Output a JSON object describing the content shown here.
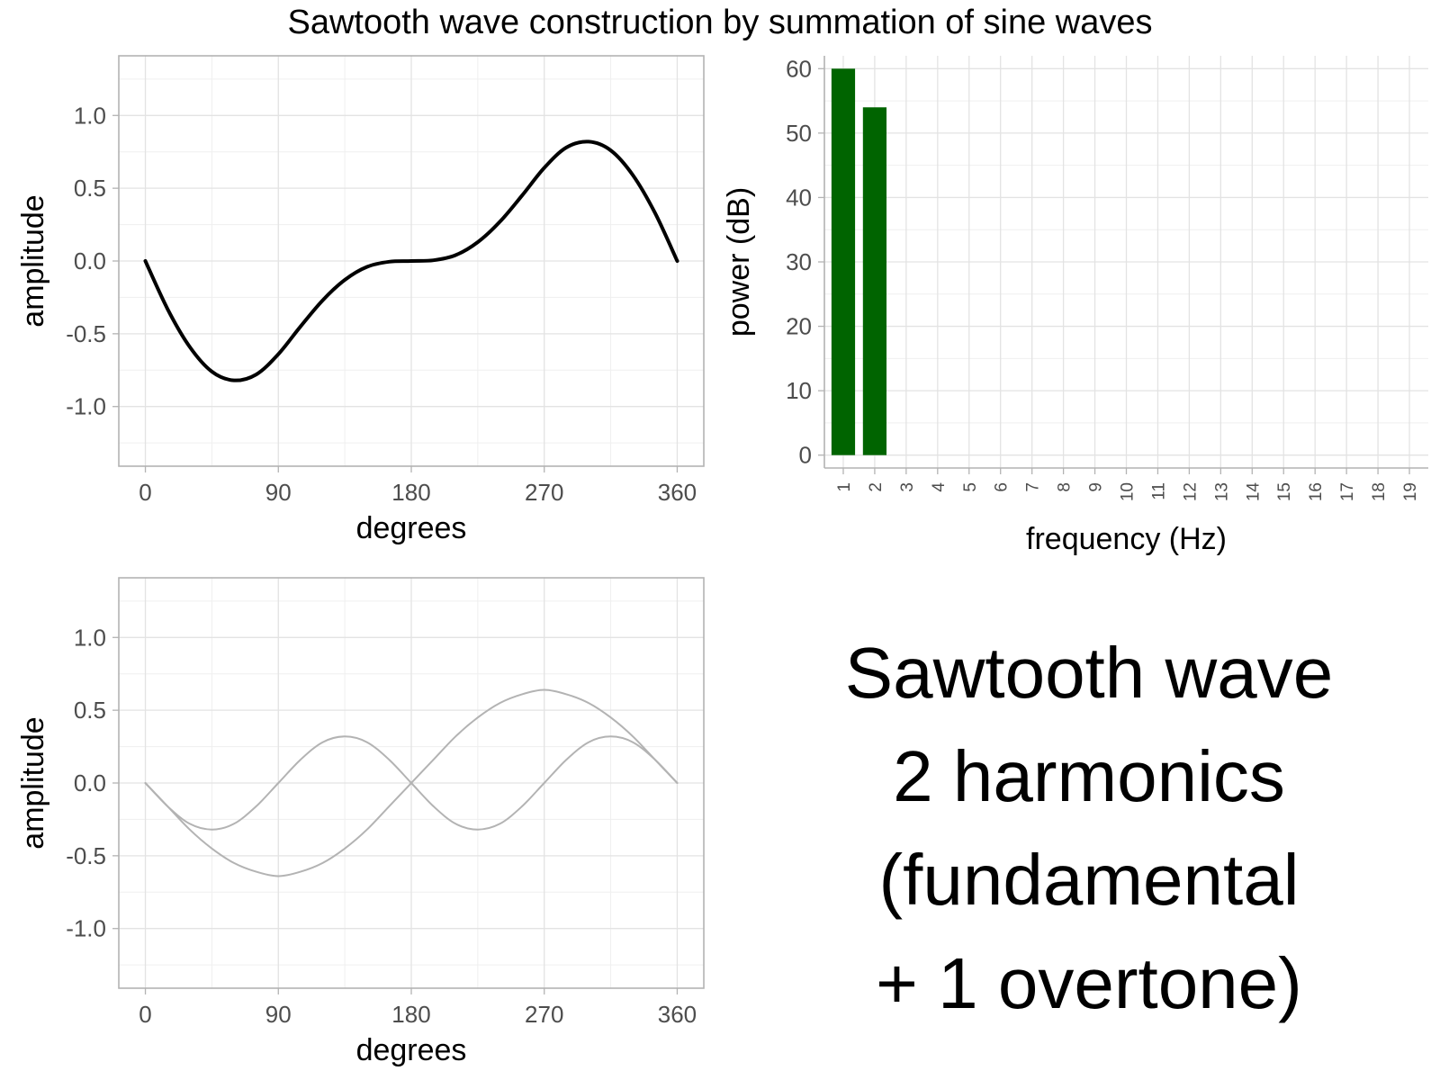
{
  "title": "Sawtooth wave construction by summation of sine waves",
  "caption": {
    "lines": [
      "Sawtooth wave",
      "2 harmonics",
      "(fundamental",
      "+ 1 overtone)"
    ]
  },
  "colors": {
    "sum_wave": "#000000",
    "component_wave": "#b3b3b3",
    "bar_fill": "#006400",
    "grid": "#e3e3e3",
    "panel_border": "#b3b3b3",
    "tick_text": "#4d4d4d"
  },
  "chart_data": [
    {
      "id": "sum",
      "type": "line",
      "title": "",
      "xlabel": "degrees",
      "ylabel": "amplitude",
      "xlim": [
        -18,
        378
      ],
      "ylim": [
        -1.41,
        1.41
      ],
      "xticks": [
        0,
        90,
        180,
        270,
        360
      ],
      "xtick_labels": [
        "0",
        "90",
        "180",
        "270",
        "360"
      ],
      "yticks": [
        1.0,
        0.5,
        0.0,
        -0.5,
        -1.0
      ],
      "ytick_labels": [
        "1.0",
        "0.5",
        "0.0",
        "-0.5",
        "-1.0"
      ],
      "grid": true,
      "series": [
        {
          "x": [
            0,
            15,
            30,
            45,
            60,
            75,
            90,
            105,
            120,
            135,
            150,
            165,
            180,
            195,
            210,
            225,
            240,
            255,
            270,
            285,
            300,
            315,
            330,
            345,
            360
          ],
          "y": [
            0,
            -0.33,
            -0.59,
            -0.76,
            -0.82,
            -0.78,
            -0.64,
            -0.45,
            -0.27,
            -0.13,
            -0.04,
            -0.005,
            0,
            0.005,
            0.04,
            0.13,
            0.27,
            0.45,
            0.64,
            0.78,
            0.82,
            0.76,
            0.59,
            0.33,
            0
          ]
        }
      ]
    },
    {
      "id": "spectrum",
      "type": "bar",
      "title": "",
      "xlabel": "frequency (Hz)",
      "ylabel": "power (dB)",
      "categories": [
        "1",
        "2",
        "3",
        "4",
        "5",
        "6",
        "7",
        "8",
        "9",
        "10",
        "11",
        "12",
        "13",
        "14",
        "15",
        "16",
        "17",
        "18",
        "19"
      ],
      "values": [
        60,
        54,
        0,
        0,
        0,
        0,
        0,
        0,
        0,
        0,
        0,
        0,
        0,
        0,
        0,
        0,
        0,
        0,
        0
      ],
      "ylim": [
        -2,
        62
      ],
      "yticks": [
        0,
        10,
        20,
        30,
        40,
        50,
        60
      ],
      "ytick_labels": [
        "0",
        "10",
        "20",
        "30",
        "40",
        "50",
        "60"
      ],
      "grid": true
    },
    {
      "id": "components",
      "type": "line",
      "title": "",
      "xlabel": "degrees",
      "ylabel": "amplitude",
      "xlim": [
        -18,
        378
      ],
      "ylim": [
        -1.41,
        1.41
      ],
      "xticks": [
        0,
        90,
        180,
        270,
        360
      ],
      "xtick_labels": [
        "0",
        "90",
        "180",
        "270",
        "360"
      ],
      "yticks": [
        1.0,
        0.5,
        0.0,
        -0.5,
        -1.0
      ],
      "ytick_labels": [
        "1.0",
        "0.5",
        "0.0",
        "-0.5",
        "-1.0"
      ],
      "grid": true,
      "series": [
        {
          "x": [
            0,
            15,
            30,
            45,
            60,
            75,
            90,
            105,
            120,
            135,
            150,
            165,
            180,
            195,
            210,
            225,
            240,
            255,
            270,
            285,
            300,
            315,
            330,
            345,
            360
          ],
          "y": [
            0,
            -0.16,
            -0.32,
            -0.45,
            -0.55,
            -0.61,
            -0.64,
            -0.61,
            -0.55,
            -0.45,
            -0.32,
            -0.16,
            0,
            0.16,
            0.32,
            0.45,
            0.55,
            0.61,
            0.64,
            0.61,
            0.55,
            0.45,
            0.32,
            0.16,
            0
          ]
        },
        {
          "x": [
            0,
            15,
            30,
            45,
            60,
            75,
            90,
            105,
            120,
            135,
            150,
            165,
            180,
            195,
            210,
            225,
            240,
            255,
            270,
            285,
            300,
            315,
            330,
            345,
            360
          ],
          "y": [
            0,
            -0.16,
            -0.28,
            -0.32,
            -0.28,
            -0.16,
            0,
            0.16,
            0.28,
            0.32,
            0.28,
            0.16,
            0,
            -0.16,
            -0.28,
            -0.32,
            -0.28,
            -0.16,
            0,
            0.16,
            0.28,
            0.32,
            0.28,
            0.16,
            0
          ]
        }
      ]
    }
  ]
}
